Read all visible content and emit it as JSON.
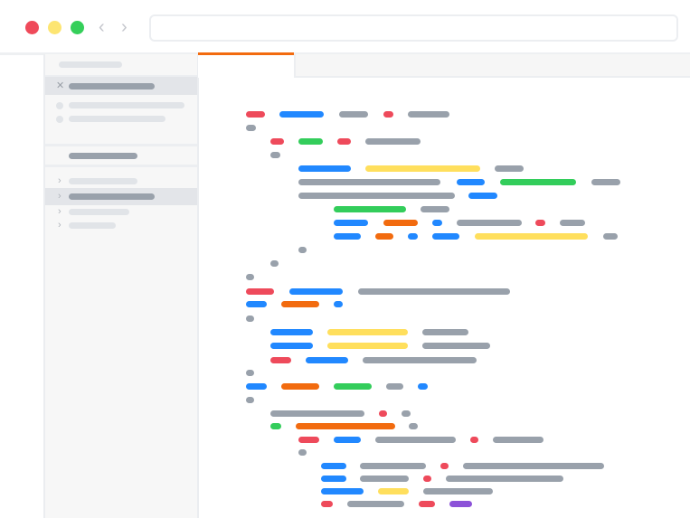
{
  "window": {
    "controls": [
      {
        "name": "close",
        "color": "#ef4a5a"
      },
      {
        "name": "minimize",
        "color": "#fde572"
      },
      {
        "name": "maximize",
        "color": "#35cf5a"
      }
    ],
    "nav_icons": {
      "back": "chevron-left-icon",
      "forward": "chevron-right-icon"
    },
    "address_value": ""
  },
  "sidebar": {
    "icons": {
      "close": "close-icon",
      "bullet": "dot-icon",
      "expand": "chevron-right-icon"
    },
    "selected_rows": [
      "open-file-1",
      "tree-item-2"
    ]
  },
  "editor": {
    "active_tab_accent": "#f26b0f",
    "token_colors": {
      "red": "#ee4a5b",
      "blue": "#2188ff",
      "gray": "#99a1ab",
      "green": "#33cd5b",
      "yellow": "#ffdf5d",
      "orange": "#f26b0f",
      "purple": "#8c52d8"
    }
  }
}
